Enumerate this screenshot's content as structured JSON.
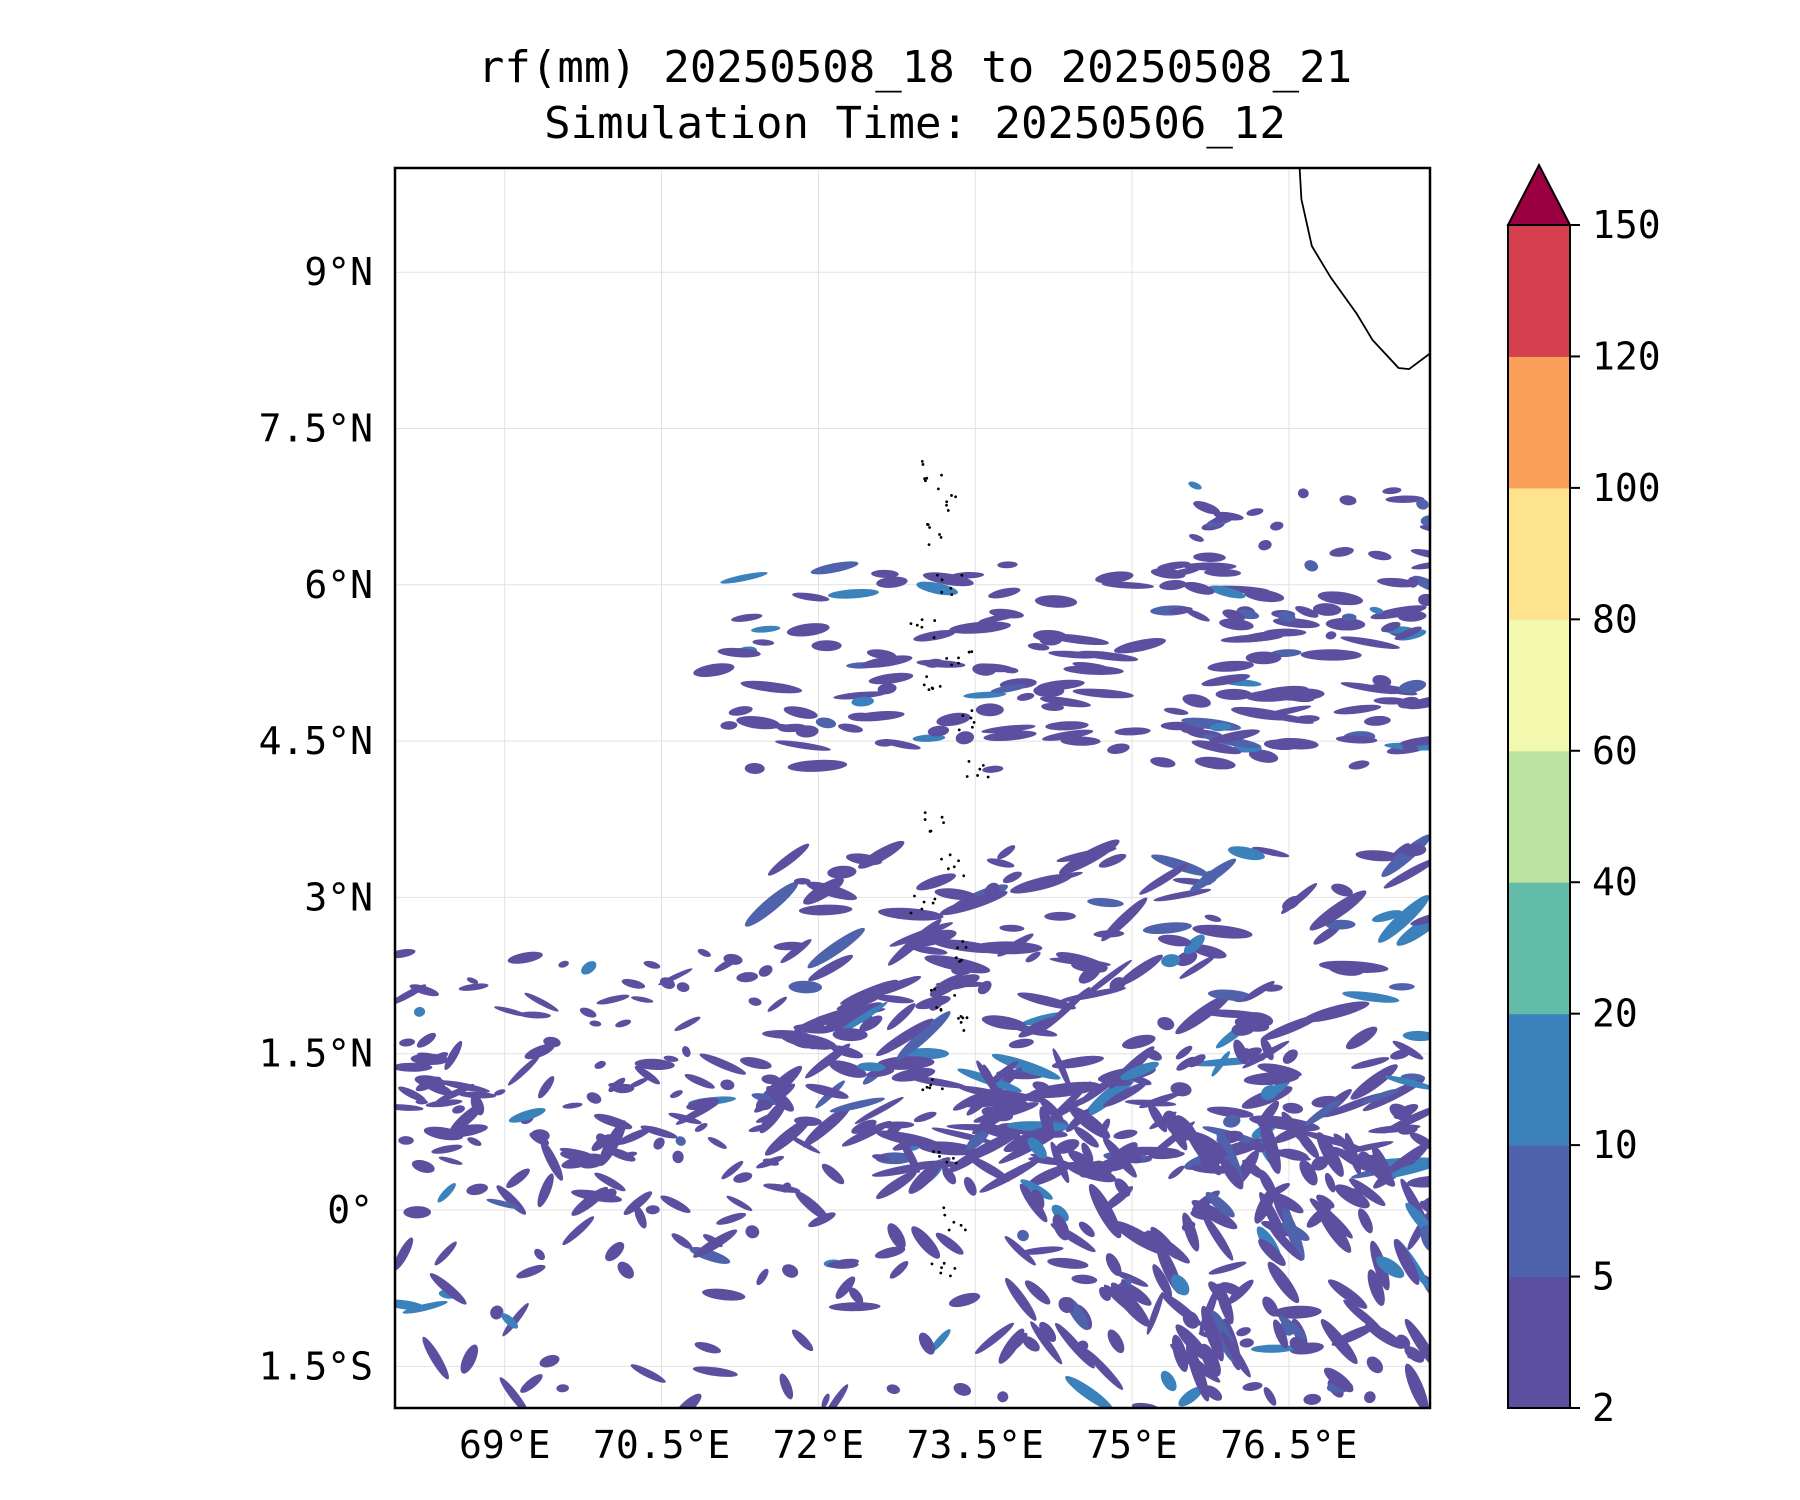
{
  "title": {
    "line1": "rf(mm) 20250508_18 to 20250508_21",
    "line2": "Simulation Time: 20250506_12"
  },
  "map": {
    "lon_range": [
      67.95,
      77.85
    ],
    "lat_range": [
      -1.9,
      10.0
    ],
    "lon_ticks": [
      {
        "value": 69.0,
        "label": "69°E"
      },
      {
        "value": 70.5,
        "label": "70.5°E"
      },
      {
        "value": 72.0,
        "label": "72°E"
      },
      {
        "value": 73.5,
        "label": "73.5°E"
      },
      {
        "value": 75.0,
        "label": "75°E"
      },
      {
        "value": 76.5,
        "label": "76.5°E"
      }
    ],
    "lat_ticks": [
      {
        "value": 9.0,
        "label": "9°N"
      },
      {
        "value": 7.5,
        "label": "7.5°N"
      },
      {
        "value": 6.0,
        "label": "6°N"
      },
      {
        "value": 4.5,
        "label": "4.5°N"
      },
      {
        "value": 3.0,
        "label": "3°N"
      },
      {
        "value": 1.5,
        "label": "1.5°N"
      },
      {
        "value": 0.0,
        "label": "0°"
      },
      {
        "value": -1.5,
        "label": "1.5°S"
      }
    ],
    "gridlines": true,
    "coastline_label": "India (southern tip) coastline, Maldives atolls"
  },
  "colorbar": {
    "levels": [
      "2",
      "5",
      "10",
      "20",
      "40",
      "60",
      "80",
      "100",
      "120",
      "150"
    ],
    "colors": [
      "#5c4fa0",
      "#4f62ac",
      "#3b82bc",
      "#62bca8",
      "#bde3a0",
      "#f2f8ad",
      "#fde38d",
      "#fba05a",
      "#d5404e",
      "#9b0043"
    ],
    "extend": "max"
  },
  "chart_data": {
    "type": "heatmap",
    "variable": "rf(mm)",
    "title": "rf(mm) 20250508_18 to 20250508_21",
    "subtitle": "Simulation Time: 20250506_12",
    "xlim": [
      67.95,
      77.85
    ],
    "ylim": [
      -1.9,
      10.0
    ],
    "levels": [
      2,
      5,
      10,
      20,
      40,
      60,
      80,
      100,
      120,
      150
    ],
    "rain_bands": [
      {
        "region": "northern band",
        "lat_range": [
          4.2,
          6.0
        ],
        "lon_range": [
          71.0,
          77.85
        ],
        "typical_mm": "2-10",
        "max_mm": 20
      },
      {
        "region": "southern band",
        "lat_range": [
          -1.9,
          3.5
        ],
        "lon_range": [
          68.0,
          77.85
        ],
        "typical_mm": "2-10",
        "max_mm": 20
      }
    ]
  }
}
